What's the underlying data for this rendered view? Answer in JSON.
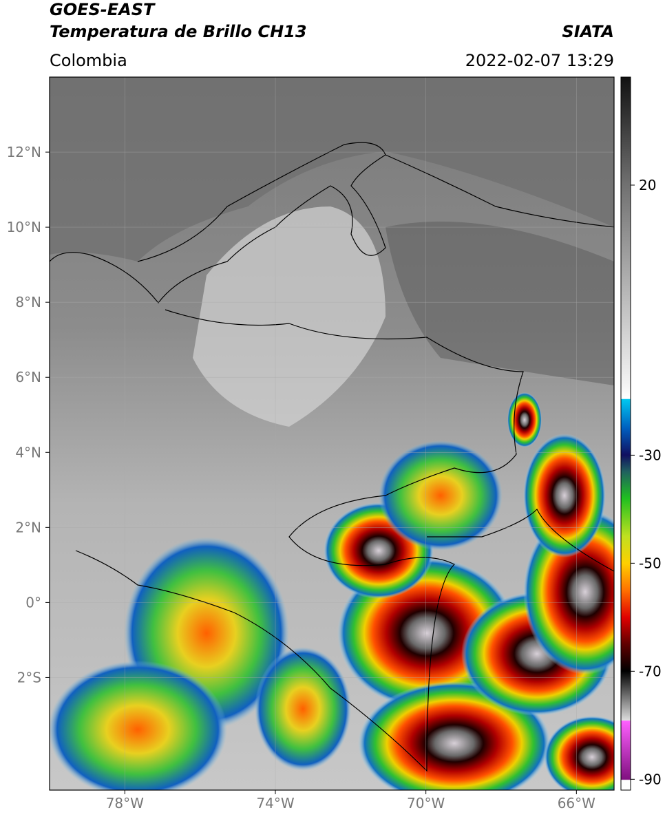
{
  "header": {
    "source": "GOES-EAST",
    "product": "Temperatura de Brillo CH13",
    "region": "Colombia",
    "agency": "SIATA",
    "datetime": "2022-02-07 13:29"
  },
  "map": {
    "xlim": [
      -80,
      -65
    ],
    "ylim": [
      -5,
      14
    ],
    "xticks": [
      {
        "value": -78,
        "label": "78°W"
      },
      {
        "value": -74,
        "label": "74°W"
      },
      {
        "value": -70,
        "label": "70°W"
      },
      {
        "value": -66,
        "label": "66°W"
      }
    ],
    "yticks": [
      {
        "value": 12,
        "label": "12°N"
      },
      {
        "value": 10,
        "label": "10°N"
      },
      {
        "value": 8,
        "label": "8°N"
      },
      {
        "value": 6,
        "label": "6°N"
      },
      {
        "value": 4,
        "label": "4°N"
      },
      {
        "value": 2,
        "label": "2°N"
      },
      {
        "value": 0,
        "label": "0°"
      },
      {
        "value": -2,
        "label": "2°S"
      }
    ],
    "grid": true
  },
  "colorbar": {
    "lim": [
      -92,
      40
    ],
    "ticks": [
      20,
      -30,
      -50,
      -70,
      -90
    ]
  }
}
